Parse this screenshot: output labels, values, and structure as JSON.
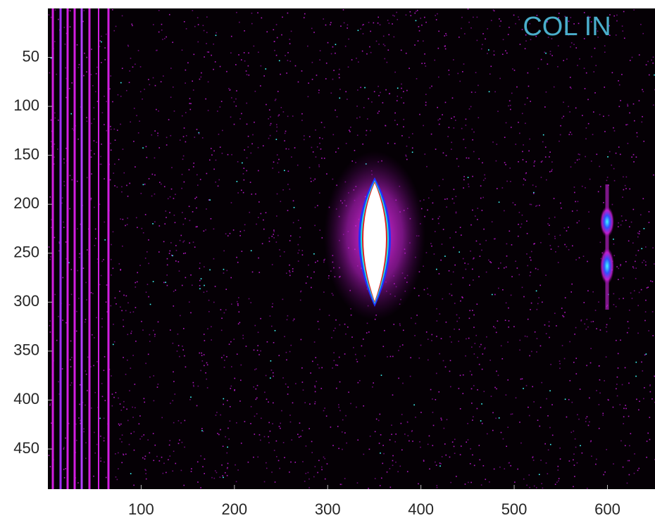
{
  "chart_data": {
    "type": "image",
    "annotation": "COL IN",
    "xlim": [
      0,
      651
    ],
    "xticks": [
      100,
      200,
      300,
      400,
      500,
      600
    ],
    "ylim": [
      0,
      491
    ],
    "yticks": [
      50,
      100,
      150,
      200,
      250,
      300,
      350,
      400,
      450
    ],
    "y_reversed": true
  }
}
